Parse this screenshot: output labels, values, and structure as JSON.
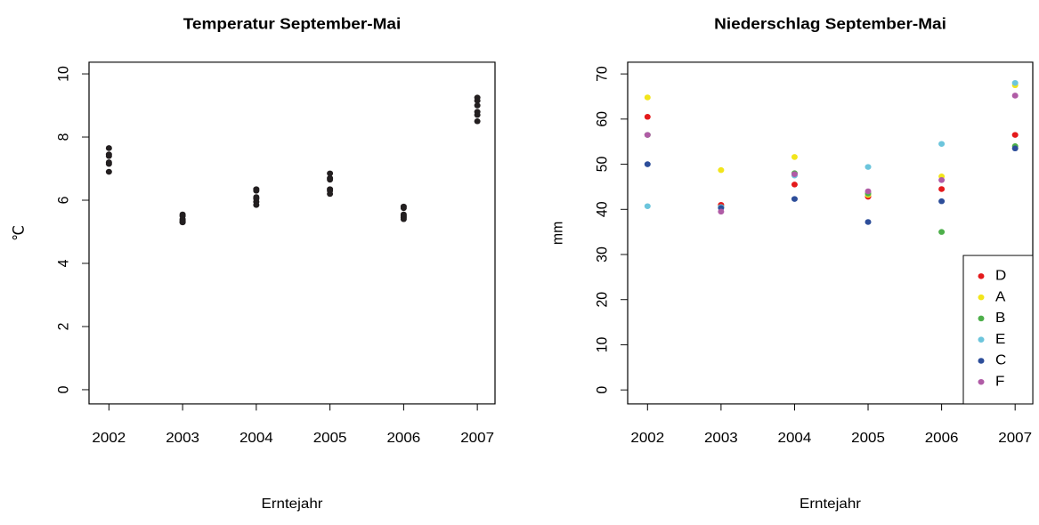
{
  "chart_data": [
    {
      "type": "scatter",
      "title": "Temperatur September-Mai",
      "xlabel": "Erntejahr",
      "ylabel": "℃",
      "color": "#231f20",
      "x": [
        2002,
        2002,
        2002,
        2002,
        2002,
        2002,
        2003,
        2003,
        2003,
        2003,
        2003,
        2003,
        2004,
        2004,
        2004,
        2004,
        2004,
        2004,
        2005,
        2005,
        2005,
        2005,
        2005,
        2005,
        2006,
        2006,
        2006,
        2006,
        2006,
        2006,
        2007,
        2007,
        2007,
        2007,
        2007,
        2007
      ],
      "values": [
        7.65,
        7.45,
        7.4,
        7.2,
        7.15,
        6.9,
        5.55,
        5.5,
        5.4,
        5.35,
        5.3,
        5.3,
        6.35,
        6.3,
        6.1,
        6.05,
        5.95,
        5.85,
        6.85,
        6.7,
        6.65,
        6.35,
        6.3,
        6.2,
        5.8,
        5.75,
        5.55,
        5.5,
        5.45,
        5.4,
        9.25,
        9.15,
        9.0,
        8.8,
        8.7,
        8.5
      ],
      "xlim": [
        2001.73,
        2007.24
      ],
      "xticks": [
        2002,
        2003,
        2004,
        2005,
        2006,
        2007
      ],
      "ylim": [
        -0.45,
        10.37
      ],
      "yticks": [
        0,
        2,
        4,
        6,
        8,
        10
      ]
    },
    {
      "type": "scatter",
      "title": "Niederschlag September-Mai",
      "xlabel": "Erntejahr",
      "ylabel": "mm",
      "legend": "bottom-right",
      "x": [
        2002,
        2003,
        2004,
        2005,
        2006,
        2007
      ],
      "series": [
        {
          "name": "D",
          "color": "#e41a1c",
          "values": [
            60.5,
            41,
            45.5,
            42.8,
            44.5,
            56.5
          ]
        },
        {
          "name": "A",
          "color": "#f2e51b",
          "values": [
            64.8,
            48.7,
            51.6,
            43.2,
            47.3,
            67.5
          ]
        },
        {
          "name": "B",
          "color": "#4daf4a",
          "values": [
            56.5,
            40.5,
            48,
            43.5,
            35,
            54
          ]
        },
        {
          "name": "E",
          "color": "#6cc5dc",
          "values": [
            40.7,
            40.5,
            47.5,
            49.4,
            54.5,
            68
          ]
        },
        {
          "name": "C",
          "color": "#2d4e9a",
          "values": [
            50,
            40.3,
            42.3,
            37.2,
            41.8,
            53.5
          ]
        },
        {
          "name": "F",
          "color": "#b05ca6",
          "values": [
            56.5,
            39.5,
            47.8,
            44,
            46.5,
            65.2
          ]
        }
      ],
      "xlim": [
        2001.73,
        2007.24
      ],
      "xticks": [
        2002,
        2003,
        2004,
        2005,
        2006,
        2007
      ],
      "ylim": [
        -3.1,
        72.6
      ],
      "yticks": [
        0,
        10,
        20,
        30,
        40,
        50,
        60,
        70
      ]
    }
  ]
}
